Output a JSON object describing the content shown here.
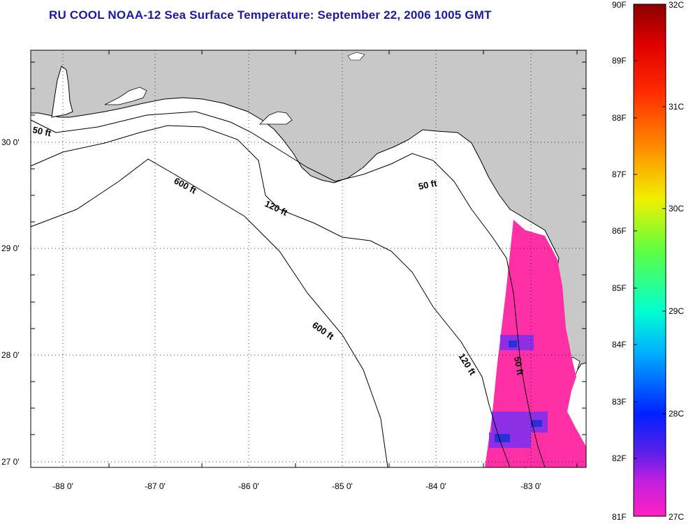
{
  "title": "RU COOL  NOAA-12  Sea Surface Temperature:  September 22, 2006 1005 GMT",
  "lat_labels": [
    "30 0'",
    "29 0'",
    "28 0'",
    "27 0'"
  ],
  "lon_labels": [
    "-88 0'",
    "-87 0'",
    "-86 0'",
    "-85 0'",
    "-84 0'",
    "-83 0'"
  ],
  "isobaths": {
    "a": "50 ft",
    "b": "600 ft",
    "c": "120 ft",
    "d": "50 ft",
    "e": "600 ft",
    "f": "120 ft",
    "g": "50 ft"
  },
  "colorbar": {
    "fahrenheit": [
      "90F",
      "89F",
      "88F",
      "87F",
      "86F",
      "85F",
      "84F",
      "83F",
      "82F",
      "81F"
    ],
    "celsius": [
      "32C",
      "31C",
      "30C",
      "29C",
      "28C",
      "27C"
    ]
  },
  "colors": {
    "title": "#1a1aa6",
    "land": "#c8c8c8",
    "water": "#ffffff",
    "sst": "#ff2fa6"
  }
}
